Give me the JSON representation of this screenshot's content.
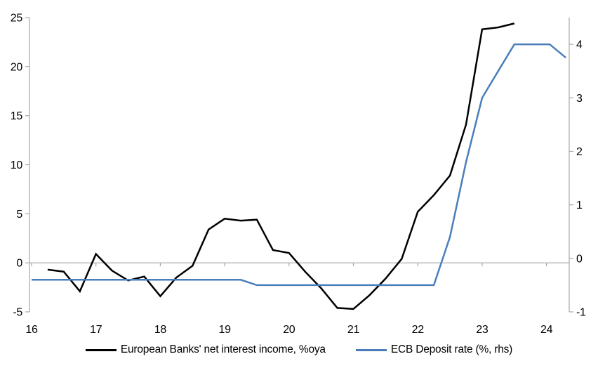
{
  "chart_data": {
    "type": "line",
    "title": "",
    "grid": "zero-line-only",
    "legend_position": "bottom",
    "axis_color": "#a6a6a6",
    "zero_line_color": "#a6a6a6",
    "x_axis": {
      "ticks": [
        16,
        17,
        18,
        19,
        20,
        21,
        22,
        23,
        24
      ],
      "range": [
        15.97,
        24.36
      ]
    },
    "left_axis": {
      "range": [
        -5,
        25
      ],
      "ticks": [
        25,
        20,
        15,
        10,
        5,
        0,
        -5
      ]
    },
    "right_axis": {
      "range": [
        -1,
        4.5
      ],
      "ticks": [
        4,
        3,
        2,
        1,
        0,
        -1
      ]
    },
    "series": [
      {
        "name": "European Banks' net interest income, %oya",
        "axis": "left",
        "color": "#000000",
        "points": [
          [
            16.25,
            -0.7
          ],
          [
            16.5,
            -0.9
          ],
          [
            16.75,
            -2.9
          ],
          [
            17.0,
            0.9
          ],
          [
            17.25,
            -0.8
          ],
          [
            17.5,
            -1.8
          ],
          [
            17.75,
            -1.4
          ],
          [
            18.0,
            -3.4
          ],
          [
            18.25,
            -1.5
          ],
          [
            18.5,
            -0.3
          ],
          [
            18.75,
            3.4
          ],
          [
            19.0,
            4.5
          ],
          [
            19.25,
            4.3
          ],
          [
            19.5,
            4.4
          ],
          [
            19.75,
            1.3
          ],
          [
            20.0,
            1.0
          ],
          [
            20.25,
            -0.9
          ],
          [
            20.5,
            -2.6
          ],
          [
            20.75,
            -4.6
          ],
          [
            21.0,
            -4.7
          ],
          [
            21.25,
            -3.3
          ],
          [
            21.5,
            -1.6
          ],
          [
            21.75,
            0.4
          ],
          [
            22.0,
            5.2
          ],
          [
            22.25,
            6.9
          ],
          [
            22.5,
            8.9
          ],
          [
            22.75,
            14.1
          ],
          [
            23.0,
            23.8
          ],
          [
            23.25,
            24.0
          ],
          [
            23.5,
            24.4
          ]
        ]
      },
      {
        "name": "ECB Deposit rate (%, rhs)",
        "axis": "right",
        "color": "#4a7ebb",
        "points": [
          [
            16.0,
            -0.4
          ],
          [
            19.25,
            -0.4
          ],
          [
            19.5,
            -0.5
          ],
          [
            22.25,
            -0.5
          ],
          [
            22.5,
            0.4
          ],
          [
            22.75,
            1.8
          ],
          [
            23.0,
            3.0
          ],
          [
            23.25,
            3.5
          ],
          [
            23.5,
            4.0
          ],
          [
            24.05,
            4.0
          ],
          [
            24.3,
            3.75
          ]
        ]
      }
    ]
  }
}
